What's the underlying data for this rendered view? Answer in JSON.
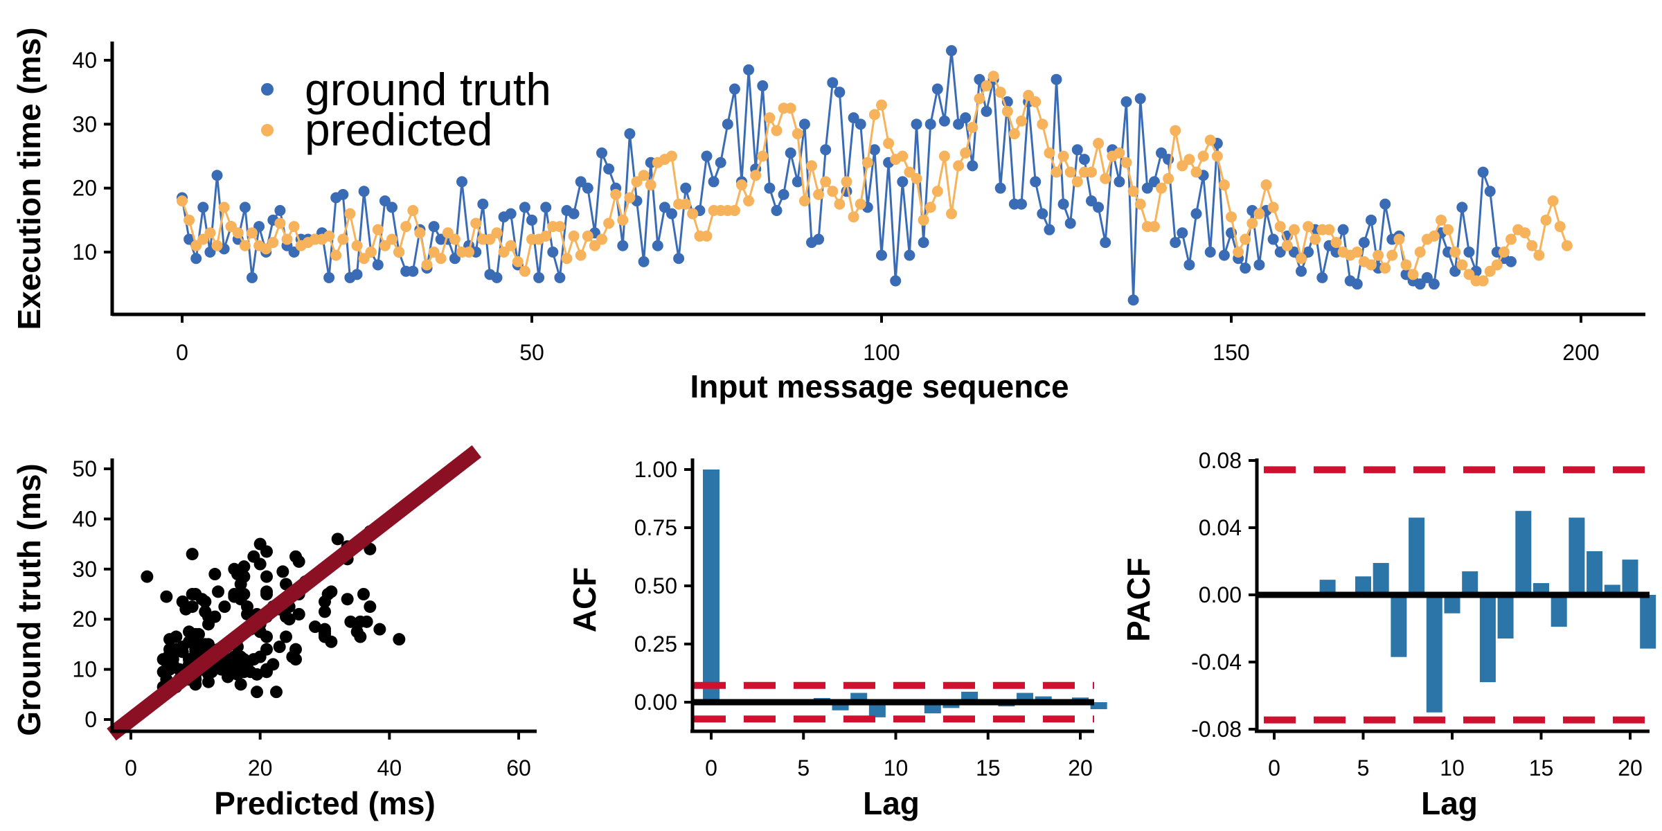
{
  "colors": {
    "ground_truth": "#3a6bb5",
    "predicted": "#f7b25c",
    "scatter_points": "#000000",
    "fit_line": "#8b1024",
    "acf_bars": "#2c75a8",
    "confidence": "#d0102e"
  },
  "chart_data": [
    {
      "type": "line",
      "xlabel": "Input message sequence",
      "ylabel": "Execution time (ms)",
      "xlim": [
        -10,
        210
      ],
      "ylim": [
        0,
        43
      ],
      "xticks": [
        0,
        50,
        100,
        150,
        200
      ],
      "yticks": [
        10,
        20,
        30,
        40
      ],
      "legend": "top-left",
      "grid": false,
      "series": [
        {
          "name": "ground truth",
          "values": [
            18.5,
            12,
            9,
            17,
            10,
            22,
            10.5,
            14,
            12,
            17,
            6,
            14,
            10,
            15,
            16.5,
            11,
            10,
            12,
            12,
            12,
            13,
            6,
            18.5,
            19,
            6,
            6.5,
            19.5,
            10,
            8,
            18,
            17,
            10,
            7,
            7,
            13.5,
            7.5,
            14,
            12,
            12,
            9,
            21,
            11,
            10,
            17.5,
            6.5,
            6,
            15.5,
            16,
            8,
            17,
            15,
            6,
            17,
            10,
            6,
            16.5,
            16,
            21,
            20,
            13,
            25.5,
            23,
            20,
            11,
            28.5,
            18,
            8.5,
            24,
            11,
            17,
            16,
            9,
            20,
            16,
            16.5,
            25,
            21,
            24,
            30,
            35.5,
            21,
            38.5,
            23,
            36,
            20,
            16.5,
            19,
            25.5,
            21,
            30,
            11.5,
            12,
            26,
            36.5,
            35,
            19.5,
            31,
            30,
            17,
            26,
            9.5,
            24,
            5.5,
            21,
            9.5,
            30,
            11.5,
            30,
            35.5,
            30.5,
            41.5,
            30,
            31,
            23.5,
            37,
            32,
            37,
            20,
            33.5,
            17.5,
            17.5,
            33.5,
            21,
            16,
            13.5,
            37,
            17.5,
            14.5,
            26,
            24.5,
            18,
            17,
            11.5,
            26,
            21,
            33.5,
            2.5,
            34,
            20,
            21,
            25.5,
            24.5,
            11.5,
            13,
            8,
            16,
            22,
            10,
            27,
            9.5,
            13,
            9,
            7.5,
            16.5,
            8,
            16.5,
            12,
            10,
            12.5,
            10,
            7,
            10,
            13.5,
            6,
            11,
            10,
            13.5,
            5.5,
            5,
            11.5,
            15,
            7.5,
            17.5,
            12,
            12.5,
            6.5,
            5.5,
            5,
            6,
            5,
            13,
            10,
            7,
            17,
            10,
            7,
            22.5,
            19.5,
            10,
            9,
            8.5
          ]
        },
        {
          "name": "predicted",
          "values": [
            18,
            15,
            11,
            12,
            13,
            11,
            17,
            14,
            13,
            11,
            13,
            11,
            10.5,
            11.5,
            14.5,
            12,
            14,
            11,
            11.5,
            12,
            12,
            12.5,
            9.5,
            12,
            16,
            11,
            9,
            10,
            13.5,
            11,
            12,
            10,
            14,
            16.5,
            13,
            8,
            10,
            9,
            13,
            12,
            10,
            10,
            14.5,
            12,
            12,
            13,
            10,
            11,
            8.5,
            7,
            12,
            12,
            12.5,
            14,
            14,
            9,
            12.5,
            9.5,
            12.5,
            11,
            12,
            14.5,
            19,
            15,
            18.5,
            21,
            22,
            20.5,
            24,
            24.5,
            25,
            17.5,
            17.5,
            16,
            12.5,
            12.5,
            16.5,
            16.5,
            16.5,
            16.5,
            20.5,
            18,
            22,
            25,
            31,
            29,
            32.5,
            32.5,
            28.5,
            18,
            23.5,
            19,
            21,
            19.5,
            17.5,
            21,
            15.5,
            17.5,
            24,
            31.5,
            33,
            27,
            24.5,
            25,
            22.5,
            21.5,
            15,
            17,
            19.5,
            25,
            16,
            23.5,
            25.5,
            29.5,
            34,
            36,
            37.5,
            35,
            32,
            28.5,
            30.5,
            34.5,
            33.5,
            30,
            25.5,
            22.5,
            25,
            22.5,
            21,
            22.5,
            22.5,
            27,
            21.5,
            25,
            25.5,
            24,
            19.5,
            17.5,
            14,
            14,
            20,
            21.5,
            29,
            23.5,
            24.5,
            22.5,
            25,
            27.5,
            25,
            20.5,
            15.5,
            10,
            12,
            14.5,
            16,
            20.5,
            17,
            14,
            11,
            13.5,
            9,
            14,
            12,
            13.5,
            13.5,
            11.5,
            10,
            9.5,
            10,
            8.5,
            8,
            9.5,
            7.5,
            9.5,
            12,
            8,
            6.5,
            10,
            12,
            12.5,
            15,
            13.5,
            10,
            8,
            6.5,
            5.5,
            5.5,
            7,
            8,
            10,
            12,
            13.5,
            13,
            11,
            9.5,
            15,
            18,
            14,
            11
          ]
        }
      ]
    },
    {
      "type": "scatter",
      "xlabel": "Predicted (ms)",
      "ylabel": "Ground truth (ms)",
      "xlim": [
        -3,
        62
      ],
      "ylim": [
        -1.5,
        52
      ],
      "xticks": [
        0,
        20,
        40,
        60
      ],
      "yticks": [
        0,
        10,
        20,
        30,
        40,
        50
      ],
      "reference_line": "y = x",
      "points": [
        [
          18.5,
          18
        ],
        [
          12,
          15
        ],
        [
          9,
          11
        ],
        [
          17,
          12
        ],
        [
          10,
          13
        ],
        [
          22,
          11
        ],
        [
          10.5,
          17
        ],
        [
          14,
          14
        ],
        [
          12,
          13
        ],
        [
          17,
          11
        ],
        [
          6,
          13
        ],
        [
          14,
          11
        ],
        [
          10,
          10.5
        ],
        [
          15,
          11.5
        ],
        [
          16.5,
          14.5
        ],
        [
          11,
          12
        ],
        [
          10,
          14
        ],
        [
          12,
          11
        ],
        [
          12,
          11.5
        ],
        [
          12,
          12
        ],
        [
          13,
          12
        ],
        [
          6,
          12.5
        ],
        [
          18.5,
          9.5
        ],
        [
          19,
          12
        ],
        [
          6,
          16
        ],
        [
          6.5,
          11
        ],
        [
          19.5,
          9
        ],
        [
          10,
          10
        ],
        [
          8,
          13.5
        ],
        [
          18,
          11
        ],
        [
          17,
          12
        ],
        [
          10,
          10
        ],
        [
          7,
          14
        ],
        [
          7,
          16.5
        ],
        [
          13.5,
          13
        ],
        [
          7.5,
          8
        ],
        [
          14,
          10
        ],
        [
          12,
          9
        ],
        [
          12,
          13
        ],
        [
          9,
          12
        ],
        [
          21,
          10
        ],
        [
          11,
          10
        ],
        [
          10,
          14.5
        ],
        [
          17.5,
          12
        ],
        [
          6.5,
          12
        ],
        [
          6,
          13
        ],
        [
          15.5,
          10
        ],
        [
          16,
          11
        ],
        [
          8,
          8.5
        ],
        [
          17,
          7
        ],
        [
          15,
          12
        ],
        [
          6,
          12
        ],
        [
          17,
          12.5
        ],
        [
          10,
          14
        ],
        [
          6,
          14
        ],
        [
          16.5,
          9
        ],
        [
          16,
          12.5
        ],
        [
          21,
          9.5
        ],
        [
          20,
          12.5
        ],
        [
          13,
          11
        ],
        [
          25.5,
          12
        ],
        [
          23,
          14.5
        ],
        [
          20,
          19
        ],
        [
          11,
          15
        ],
        [
          28.5,
          18.5
        ],
        [
          18,
          21
        ],
        [
          8.5,
          22
        ],
        [
          24,
          20.5
        ],
        [
          11,
          24
        ],
        [
          17,
          24.5
        ],
        [
          16,
          25
        ],
        [
          9,
          17.5
        ],
        [
          20,
          17.5
        ],
        [
          16,
          16
        ],
        [
          16.5,
          12.5
        ],
        [
          25,
          12.5
        ],
        [
          21,
          16.5
        ],
        [
          24,
          16.5
        ],
        [
          30,
          16.5
        ],
        [
          35.5,
          16.5
        ],
        [
          21,
          20.5
        ],
        [
          38.5,
          18
        ],
        [
          23,
          22
        ],
        [
          36,
          25
        ],
        [
          20,
          31
        ],
        [
          16.5,
          29
        ],
        [
          19,
          32.5
        ],
        [
          25.5,
          32.5
        ],
        [
          21,
          28.5
        ],
        [
          30,
          18
        ],
        [
          11.5,
          23.5
        ],
        [
          12,
          19
        ],
        [
          26,
          21
        ],
        [
          36.5,
          19.5
        ],
        [
          35,
          17.5
        ],
        [
          19.5,
          21
        ],
        [
          31,
          15.5
        ],
        [
          30,
          17.5
        ],
        [
          17,
          24
        ],
        [
          26,
          31.5
        ],
        [
          9.5,
          33
        ],
        [
          24,
          27
        ],
        [
          5.5,
          24.5
        ],
        [
          21,
          25
        ],
        [
          9.5,
          22.5
        ],
        [
          30,
          21.5
        ],
        [
          11.5,
          15
        ],
        [
          30,
          17
        ],
        [
          35.5,
          19.5
        ],
        [
          30.5,
          25
        ],
        [
          41.5,
          16
        ],
        [
          30,
          23.5
        ],
        [
          31,
          25.5
        ],
        [
          23.5,
          29.5
        ],
        [
          37,
          34
        ],
        [
          32,
          36
        ],
        [
          37,
          37.5
        ],
        [
          20,
          35
        ],
        [
          33.5,
          32
        ],
        [
          17.5,
          28.5
        ],
        [
          17.5,
          30.5
        ],
        [
          33.5,
          34.5
        ],
        [
          21,
          33.5
        ],
        [
          16,
          30
        ],
        [
          13.5,
          25.5
        ],
        [
          37,
          22.5
        ],
        [
          17.5,
          25
        ],
        [
          14.5,
          22.5
        ],
        [
          26,
          21
        ],
        [
          24.5,
          22.5
        ],
        [
          18,
          22.5
        ],
        [
          17,
          27
        ],
        [
          11.5,
          21.5
        ],
        [
          26,
          25
        ],
        [
          21,
          25.5
        ],
        [
          33.5,
          24
        ],
        [
          2.5,
          28.5
        ],
        [
          34,
          19.5
        ],
        [
          20,
          17.5
        ],
        [
          21,
          14
        ],
        [
          25.5,
          14
        ],
        [
          24.5,
          20
        ],
        [
          11.5,
          21.5
        ],
        [
          13,
          29
        ],
        [
          8,
          23.5
        ],
        [
          16,
          24.5
        ],
        [
          22,
          22.5
        ],
        [
          10,
          25
        ],
        [
          27,
          27.5
        ],
        [
          9.5,
          25
        ],
        [
          13,
          20.5
        ],
        [
          9,
          15.5
        ],
        [
          7.5,
          10
        ],
        [
          16.5,
          12
        ],
        [
          8,
          14.5
        ],
        [
          16.5,
          16
        ],
        [
          12,
          20.5
        ],
        [
          10,
          17
        ],
        [
          12.5,
          14
        ],
        [
          10,
          11
        ],
        [
          7,
          13.5
        ],
        [
          10,
          9
        ],
        [
          13.5,
          14
        ],
        [
          6,
          12
        ],
        [
          11,
          13.5
        ],
        [
          10,
          13.5
        ],
        [
          13.5,
          11.5
        ],
        [
          5.5,
          10
        ],
        [
          5,
          9.5
        ],
        [
          11.5,
          10
        ],
        [
          15,
          8.5
        ],
        [
          7.5,
          8
        ],
        [
          17.5,
          9.5
        ],
        [
          12,
          7.5
        ],
        [
          12.5,
          9.5
        ],
        [
          6.5,
          12
        ],
        [
          5.5,
          8
        ],
        [
          5,
          6.5
        ],
        [
          6,
          10
        ],
        [
          5,
          12
        ],
        [
          13,
          12.5
        ],
        [
          10,
          15
        ],
        [
          7,
          13.5
        ],
        [
          17,
          10
        ],
        [
          10,
          8
        ],
        [
          7,
          6.5
        ],
        [
          22.5,
          5.5
        ],
        [
          19.5,
          5.5
        ],
        [
          10,
          7
        ],
        [
          9,
          8
        ],
        [
          8.5,
          10
        ]
      ]
    },
    {
      "type": "bar",
      "xlabel": "Lag",
      "ylabel": "ACF",
      "xlim": [
        -1,
        21
      ],
      "ylim": [
        -0.12,
        1.04
      ],
      "xticks": [
        0,
        5,
        10,
        15,
        20
      ],
      "yticks": [
        "0.00",
        "0.25",
        "0.50",
        "0.75",
        "1.00"
      ],
      "confidence_band": 0.072,
      "lags": [
        0,
        1,
        2,
        3,
        4,
        5,
        6,
        7,
        8,
        9,
        10,
        11,
        12,
        13,
        14,
        15,
        16,
        17,
        18,
        19,
        20,
        21
      ],
      "values": [
        1.0,
        0.004,
        0.002,
        0.009,
        0.004,
        0.011,
        0.018,
        -0.035,
        0.04,
        -0.065,
        -0.008,
        0.012,
        -0.048,
        -0.025,
        0.045,
        0.006,
        -0.018,
        0.04,
        0.025,
        0.005,
        0.02,
        -0.03
      ]
    },
    {
      "type": "bar",
      "xlabel": "Lag",
      "ylabel": "PACF",
      "xlim": [
        -1,
        21
      ],
      "ylim": [
        -0.08,
        0.08
      ],
      "xticks": [
        0,
        5,
        10,
        15,
        20
      ],
      "yticks": [
        "-0.08",
        "-0.04",
        "0.00",
        "0.04",
        "0.08"
      ],
      "confidence_band": 0.0745,
      "lags": [
        1,
        2,
        3,
        4,
        5,
        6,
        7,
        8,
        9,
        10,
        11,
        12,
        13,
        14,
        15,
        16,
        17,
        18,
        19,
        20,
        21
      ],
      "values": [
        0.0,
        0.0,
        0.009,
        0.0,
        0.011,
        0.019,
        -0.037,
        0.046,
        -0.07,
        -0.011,
        0.014,
        -0.052,
        -0.026,
        0.05,
        0.007,
        -0.019,
        0.046,
        0.026,
        0.006,
        0.021,
        -0.032
      ]
    }
  ]
}
